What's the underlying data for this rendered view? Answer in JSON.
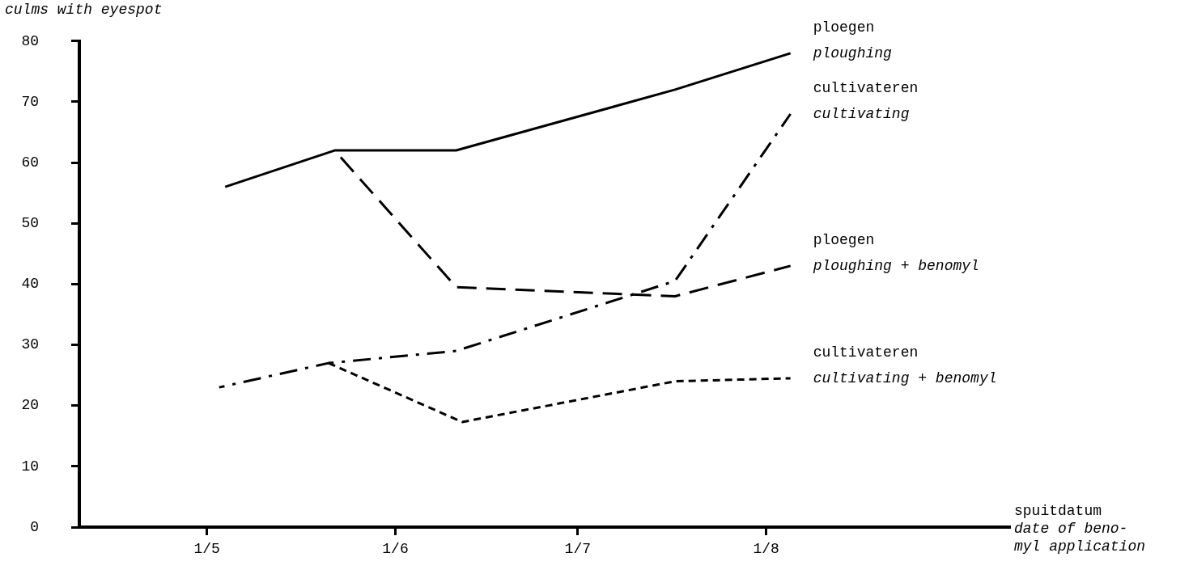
{
  "chart_data": {
    "type": "line",
    "ylabel": "culms with eyespot",
    "xlabel": "spuitdatum\ndate of beno-\nmyl application",
    "xlim": [
      "--04-10",
      "--09-10"
    ],
    "xticks": [
      {
        "value": "--05-01",
        "label": "1/5"
      },
      {
        "value": "--06-01",
        "label": "1/6"
      },
      {
        "value": "--07-01",
        "label": "1/7"
      },
      {
        "value": "--08-01",
        "label": "1/8"
      }
    ],
    "ylim": [
      0,
      80
    ],
    "yticks": [
      0,
      10,
      20,
      30,
      40,
      50,
      60,
      70,
      80
    ],
    "grid": false,
    "legend": false,
    "marker": "none",
    "series": [
      {
        "name": "ploegen\nploughing",
        "color": "#000000",
        "line_style": "solid",
        "x": [
          "--05-04",
          "--05-22",
          "--06-11",
          "--07-17",
          "--08-05"
        ],
        "values": [
          56,
          62,
          62,
          72,
          78
        ]
      },
      {
        "name": "cultivateren\ncultivating",
        "color": "#000000",
        "line_style": "dashdot",
        "x": [
          "--05-03",
          "--05-21",
          "--06-11",
          "--07-17",
          "--08-05"
        ],
        "values": [
          23,
          27,
          29,
          40.5,
          68
        ]
      },
      {
        "name": "ploegen\nploughing + benomyl",
        "color": "#000000",
        "line_style": "dashed",
        "x": [
          "--05-22",
          "--06-11",
          "--07-17",
          "--08-05"
        ],
        "values": [
          62,
          39.5,
          38,
          43
        ]
      },
      {
        "name": "cultivateren\ncultivating + benomyl",
        "color": "#000000",
        "line_style": "dotted",
        "x": [
          "--05-21",
          "--06-12",
          "--07-17",
          "--08-05"
        ],
        "values": [
          27,
          17.3,
          24,
          24.5
        ]
      }
    ]
  }
}
